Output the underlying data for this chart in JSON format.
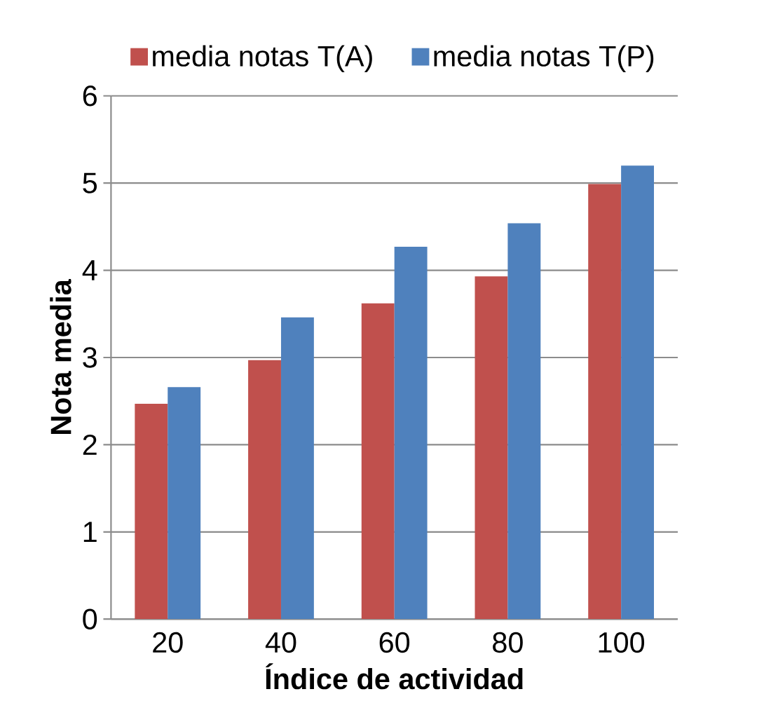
{
  "chart_data": {
    "type": "bar",
    "xlabel": "Índice de actividad",
    "ylabel": "Nota media",
    "categories": [
      "20",
      "40",
      "60",
      "80",
      "100"
    ],
    "series": [
      {
        "name": "media notas T(A)",
        "color": "#c0504d",
        "values": [
          2.47,
          2.97,
          3.62,
          3.93,
          4.99
        ]
      },
      {
        "name": "media notas T(P)",
        "color": "#4f81bd",
        "values": [
          2.66,
          3.46,
          4.27,
          4.54,
          5.2
        ]
      }
    ],
    "ylim": [
      0,
      6
    ],
    "yticks": [
      0,
      1,
      2,
      3,
      4,
      5,
      6
    ],
    "grid": "y",
    "legend": "top"
  }
}
